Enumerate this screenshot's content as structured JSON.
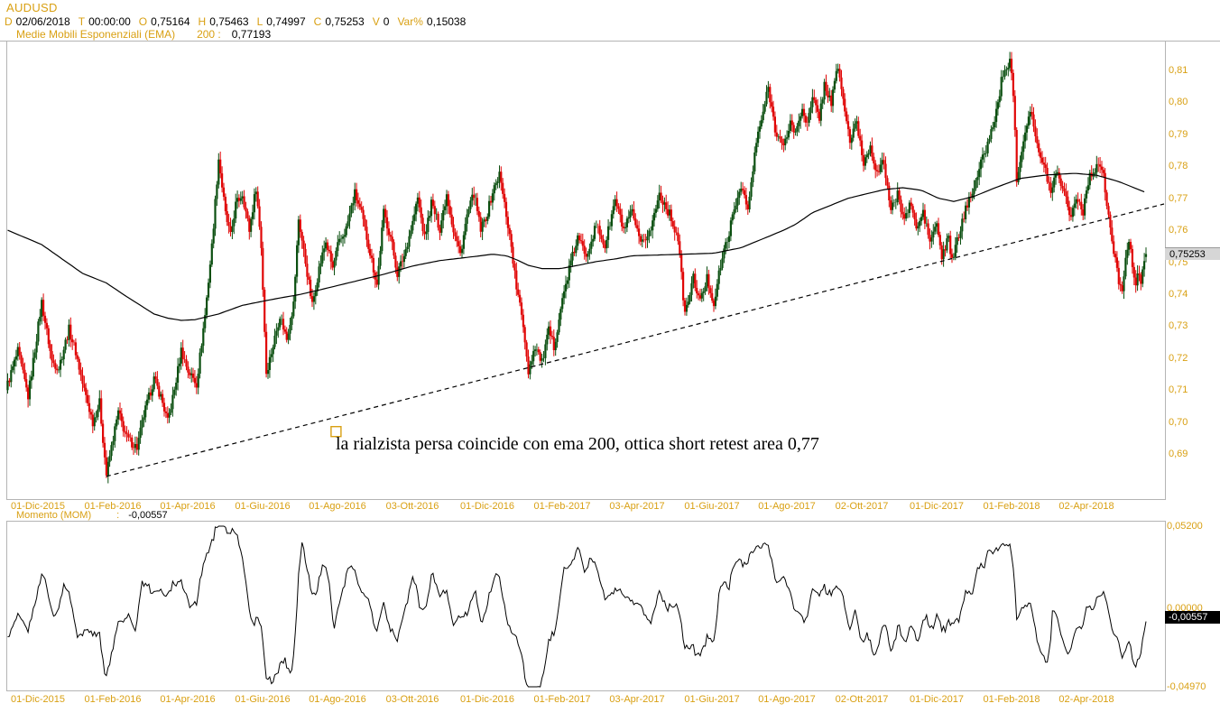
{
  "window": {
    "title": "AUDUSD"
  },
  "header": {
    "fields": [
      {
        "k": "D",
        "v": "02/06/2018"
      },
      {
        "k": "T",
        "v": "00:00:00"
      },
      {
        "k": "O",
        "v": "0,75164"
      },
      {
        "k": "H",
        "v": "0,75463"
      },
      {
        "k": "L",
        "v": "0,74997"
      },
      {
        "k": "C",
        "v": "0,75253"
      },
      {
        "k": "V",
        "v": "0"
      },
      {
        "k": "Var%",
        "v": "0,15038"
      }
    ],
    "indicator_row": {
      "label": "Medie Mobili Esponenziali (EMA)",
      "period": "200 :",
      "value": "0,77193"
    }
  },
  "momentum_row": {
    "label": "Momento (MOM)",
    "sep": ":",
    "value": "-0,00557"
  },
  "colors": {
    "accent_gold": "#d9a013",
    "candle_up": "#0b4f10",
    "candle_down": "#e00606",
    "ema_line": "#000000",
    "trendline": "#000000",
    "grid_border": "#b4b4b4",
    "price_badge_bg": "#d6d6d6",
    "price_badge_text": "#000000",
    "mom_badge_bg": "#000000",
    "mom_badge_text": "#ffffff",
    "background": "#ffffff"
  },
  "chart_data": {
    "type": "candlestick",
    "symbol": "AUDUSD",
    "timeframe": "daily",
    "title": "AUDUSD daily with EMA 200, rising trendline and Momentum (MOM)",
    "x_axis_labels": [
      "01-Dic-2015",
      "01-Feb-2016",
      "01-Apr-2016",
      "01-Giu-2016",
      "01-Ago-2016",
      "03-Ott-2016",
      "01-Dic-2016",
      "01-Feb-2017",
      "03-Apr-2017",
      "01-Giu-2017",
      "01-Ago-2017",
      "02-Ott-2017",
      "01-Dic-2017",
      "01-Feb-2018",
      "02-Apr-2018"
    ],
    "price_axis": {
      "tick_labels": [
        "0,81",
        "0,80",
        "0,79",
        "0,78",
        "0,77",
        "0,76",
        "0,75",
        "0,74",
        "0,73",
        "0,72",
        "0,71",
        "0,70",
        "0,69"
      ],
      "tick_values": [
        0.81,
        0.8,
        0.79,
        0.78,
        0.77,
        0.76,
        0.75,
        0.74,
        0.73,
        0.72,
        0.71,
        0.7,
        0.69
      ]
    },
    "last_bar": {
      "open": 0.75164,
      "high": 0.75463,
      "low": 0.74997,
      "close": 0.75253
    },
    "last_price_label": "0,75253",
    "days_total": 670,
    "price_path": [
      [
        0,
        0.712
      ],
      [
        6,
        0.722
      ],
      [
        12,
        0.708
      ],
      [
        20,
        0.7375
      ],
      [
        26,
        0.719
      ],
      [
        30,
        0.717
      ],
      [
        36,
        0.729
      ],
      [
        40,
        0.722
      ],
      [
        44,
        0.712
      ],
      [
        50,
        0.7
      ],
      [
        54,
        0.706
      ],
      [
        58,
        0.6835
      ],
      [
        62,
        0.695
      ],
      [
        65,
        0.703
      ],
      [
        70,
        0.695
      ],
      [
        76,
        0.692
      ],
      [
        80,
        0.702
      ],
      [
        86,
        0.7135
      ],
      [
        90,
        0.708
      ],
      [
        94,
        0.7
      ],
      [
        98,
        0.71
      ],
      [
        102,
        0.7225
      ],
      [
        106,
        0.716
      ],
      [
        111,
        0.712
      ],
      [
        116,
        0.7335
      ],
      [
        120,
        0.755
      ],
      [
        124,
        0.7825
      ],
      [
        128,
        0.765
      ],
      [
        131,
        0.758
      ],
      [
        134,
        0.768
      ],
      [
        138,
        0.7715
      ],
      [
        142,
        0.76
      ],
      [
        146,
        0.7735
      ],
      [
        149,
        0.755
      ],
      [
        152,
        0.7155
      ],
      [
        156,
        0.724
      ],
      [
        160,
        0.7335
      ],
      [
        164,
        0.726
      ],
      [
        168,
        0.737
      ],
      [
        171,
        0.7635
      ],
      [
        175,
        0.75
      ],
      [
        179,
        0.7365
      ],
      [
        183,
        0.748
      ],
      [
        187,
        0.7565
      ],
      [
        191,
        0.748
      ],
      [
        194,
        0.755
      ],
      [
        199,
        0.7605
      ],
      [
        204,
        0.7715
      ],
      [
        208,
        0.765
      ],
      [
        213,
        0.753
      ],
      [
        217,
        0.743
      ],
      [
        221,
        0.7655
      ],
      [
        225,
        0.758
      ],
      [
        229,
        0.7465
      ],
      [
        233,
        0.752
      ],
      [
        238,
        0.7625
      ],
      [
        241,
        0.77
      ],
      [
        245,
        0.7575
      ],
      [
        249,
        0.7685
      ],
      [
        254,
        0.7605
      ],
      [
        258,
        0.7715
      ],
      [
        262,
        0.76
      ],
      [
        266,
        0.7525
      ],
      [
        270,
        0.7645
      ],
      [
        274,
        0.7715
      ],
      [
        278,
        0.76
      ],
      [
        282,
        0.7655
      ],
      [
        285,
        0.772
      ],
      [
        289,
        0.7775
      ],
      [
        293,
        0.765
      ],
      [
        296,
        0.755
      ],
      [
        299,
        0.742
      ],
      [
        303,
        0.7305
      ],
      [
        306,
        0.716
      ],
      [
        310,
        0.724
      ],
      [
        314,
        0.7185
      ],
      [
        318,
        0.7285
      ],
      [
        321,
        0.7235
      ],
      [
        325,
        0.7355
      ],
      [
        330,
        0.748
      ],
      [
        335,
        0.7575
      ],
      [
        340,
        0.7525
      ],
      [
        346,
        0.7615
      ],
      [
        351,
        0.755
      ],
      [
        357,
        0.7695
      ],
      [
        362,
        0.76
      ],
      [
        367,
        0.7655
      ],
      [
        372,
        0.755
      ],
      [
        378,
        0.7605
      ],
      [
        383,
        0.7715
      ],
      [
        389,
        0.765
      ],
      [
        394,
        0.7575
      ],
      [
        398,
        0.7335
      ],
      [
        403,
        0.745
      ],
      [
        407,
        0.7375
      ],
      [
        411,
        0.745
      ],
      [
        415,
        0.7371
      ],
      [
        419,
        0.749
      ],
      [
        423,
        0.7575
      ],
      [
        427,
        0.766
      ],
      [
        431,
        0.7745
      ],
      [
        435,
        0.766
      ],
      [
        440,
        0.7875
      ],
      [
        444,
        0.797
      ],
      [
        447,
        0.8045
      ],
      [
        451,
        0.792
      ],
      [
        456,
        0.7855
      ],
      [
        460,
        0.794
      ],
      [
        463,
        0.79
      ],
      [
        467,
        0.7985
      ],
      [
        470,
        0.793
      ],
      [
        473,
        0.801
      ],
      [
        477,
        0.7955
      ],
      [
        480,
        0.8055
      ],
      [
        484,
        0.8
      ],
      [
        488,
        0.8115
      ],
      [
        491,
        0.8005
      ],
      [
        495,
        0.788
      ],
      [
        499,
        0.7935
      ],
      [
        503,
        0.781
      ],
      [
        507,
        0.7865
      ],
      [
        511,
        0.7775
      ],
      [
        515,
        0.7815
      ],
      [
        519,
        0.766
      ],
      [
        523,
        0.771
      ],
      [
        527,
        0.7635
      ],
      [
        531,
        0.7685
      ],
      [
        534,
        0.76
      ],
      [
        538,
        0.7655
      ],
      [
        542,
        0.7565
      ],
      [
        546,
        0.762
      ],
      [
        549,
        0.7515
      ],
      [
        553,
        0.7575
      ],
      [
        555,
        0.7501
      ],
      [
        558,
        0.7565
      ],
      [
        561,
        0.7625
      ],
      [
        565,
        0.77
      ],
      [
        569,
        0.7755
      ],
      [
        573,
        0.7825
      ],
      [
        577,
        0.7885
      ],
      [
        581,
        0.797
      ],
      [
        584,
        0.8065
      ],
      [
        589,
        0.8135
      ],
      [
        591,
        0.8035
      ],
      [
        593,
        0.7765
      ],
      [
        596,
        0.7855
      ],
      [
        598,
        0.791
      ],
      [
        601,
        0.7985
      ],
      [
        603,
        0.793
      ],
      [
        606,
        0.7835
      ],
      [
        610,
        0.7785
      ],
      [
        613,
        0.7725
      ],
      [
        617,
        0.779
      ],
      [
        621,
        0.7715
      ],
      [
        625,
        0.7645
      ],
      [
        628,
        0.7705
      ],
      [
        632,
        0.766
      ],
      [
        635,
        0.7755
      ],
      [
        638,
        0.7785
      ],
      [
        641,
        0.7812
      ],
      [
        644,
        0.7765
      ],
      [
        646,
        0.768
      ],
      [
        648,
        0.7605
      ],
      [
        650,
        0.753
      ],
      [
        653,
        0.7445
      ],
      [
        655,
        0.7413
      ],
      [
        657,
        0.7525
      ],
      [
        659,
        0.7565
      ],
      [
        661,
        0.749
      ],
      [
        663,
        0.7425
      ],
      [
        665,
        0.7475
      ],
      [
        666,
        0.744
      ],
      [
        667,
        0.7485
      ],
      [
        668,
        0.7512
      ],
      [
        669,
        0.75253
      ]
    ],
    "ema": {
      "name": "EMA 200",
      "value": 0.77193,
      "path": [
        [
          0,
          0.76
        ],
        [
          20,
          0.7555
        ],
        [
          44,
          0.7465
        ],
        [
          58,
          0.7435
        ],
        [
          70,
          0.7392
        ],
        [
          86,
          0.7338
        ],
        [
          94,
          0.7325
        ],
        [
          102,
          0.7318
        ],
        [
          110,
          0.732
        ],
        [
          124,
          0.7338
        ],
        [
          138,
          0.7365
        ],
        [
          152,
          0.738
        ],
        [
          160,
          0.7388
        ],
        [
          171,
          0.7398
        ],
        [
          187,
          0.7418
        ],
        [
          204,
          0.744
        ],
        [
          221,
          0.7462
        ],
        [
          238,
          0.7488
        ],
        [
          254,
          0.7505
        ],
        [
          270,
          0.7515
        ],
        [
          278,
          0.752
        ],
        [
          285,
          0.7525
        ],
        [
          293,
          0.752
        ],
        [
          299,
          0.7508
        ],
        [
          306,
          0.749
        ],
        [
          314,
          0.748
        ],
        [
          325,
          0.748
        ],
        [
          335,
          0.749
        ],
        [
          346,
          0.7502
        ],
        [
          357,
          0.751
        ],
        [
          367,
          0.752
        ],
        [
          398,
          0.7525
        ],
        [
          415,
          0.7528
        ],
        [
          431,
          0.7545
        ],
        [
          447,
          0.758
        ],
        [
          456,
          0.76
        ],
        [
          463,
          0.7618
        ],
        [
          473,
          0.7655
        ],
        [
          494,
          0.77
        ],
        [
          515,
          0.7727
        ],
        [
          526,
          0.7733
        ],
        [
          537,
          0.7725
        ],
        [
          547,
          0.77
        ],
        [
          556,
          0.769
        ],
        [
          568,
          0.7706
        ],
        [
          579,
          0.773
        ],
        [
          595,
          0.7762
        ],
        [
          611,
          0.7773
        ],
        [
          627,
          0.7778
        ],
        [
          640,
          0.7772
        ],
        [
          653,
          0.7752
        ],
        [
          668,
          0.772
        ],
        [
          669,
          0.77193
        ]
      ]
    },
    "trendline": {
      "style": "dashed",
      "from_day": 58,
      "from_price": 0.683,
      "to_day": 681,
      "to_price": 0.7684
    },
    "annotation": {
      "text": "la rialzista persa coincide con ema 200, ottica short retest area 0,77",
      "marker_day": 193,
      "marker_price": 0.697
    },
    "momentum": {
      "name": "Momento (MOM)",
      "period": 21,
      "last_value": -0.00557,
      "last_value_label": "-0,00557",
      "axis": [
        {
          "label": "0,05200",
          "value": 0.052
        },
        {
          "label": "0,00000",
          "value": 0.0
        },
        {
          "label": "-0,04970",
          "value": -0.0497
        }
      ],
      "pre_window_ref": {
        "start": 0.731,
        "end": 0.7158
      }
    }
  }
}
